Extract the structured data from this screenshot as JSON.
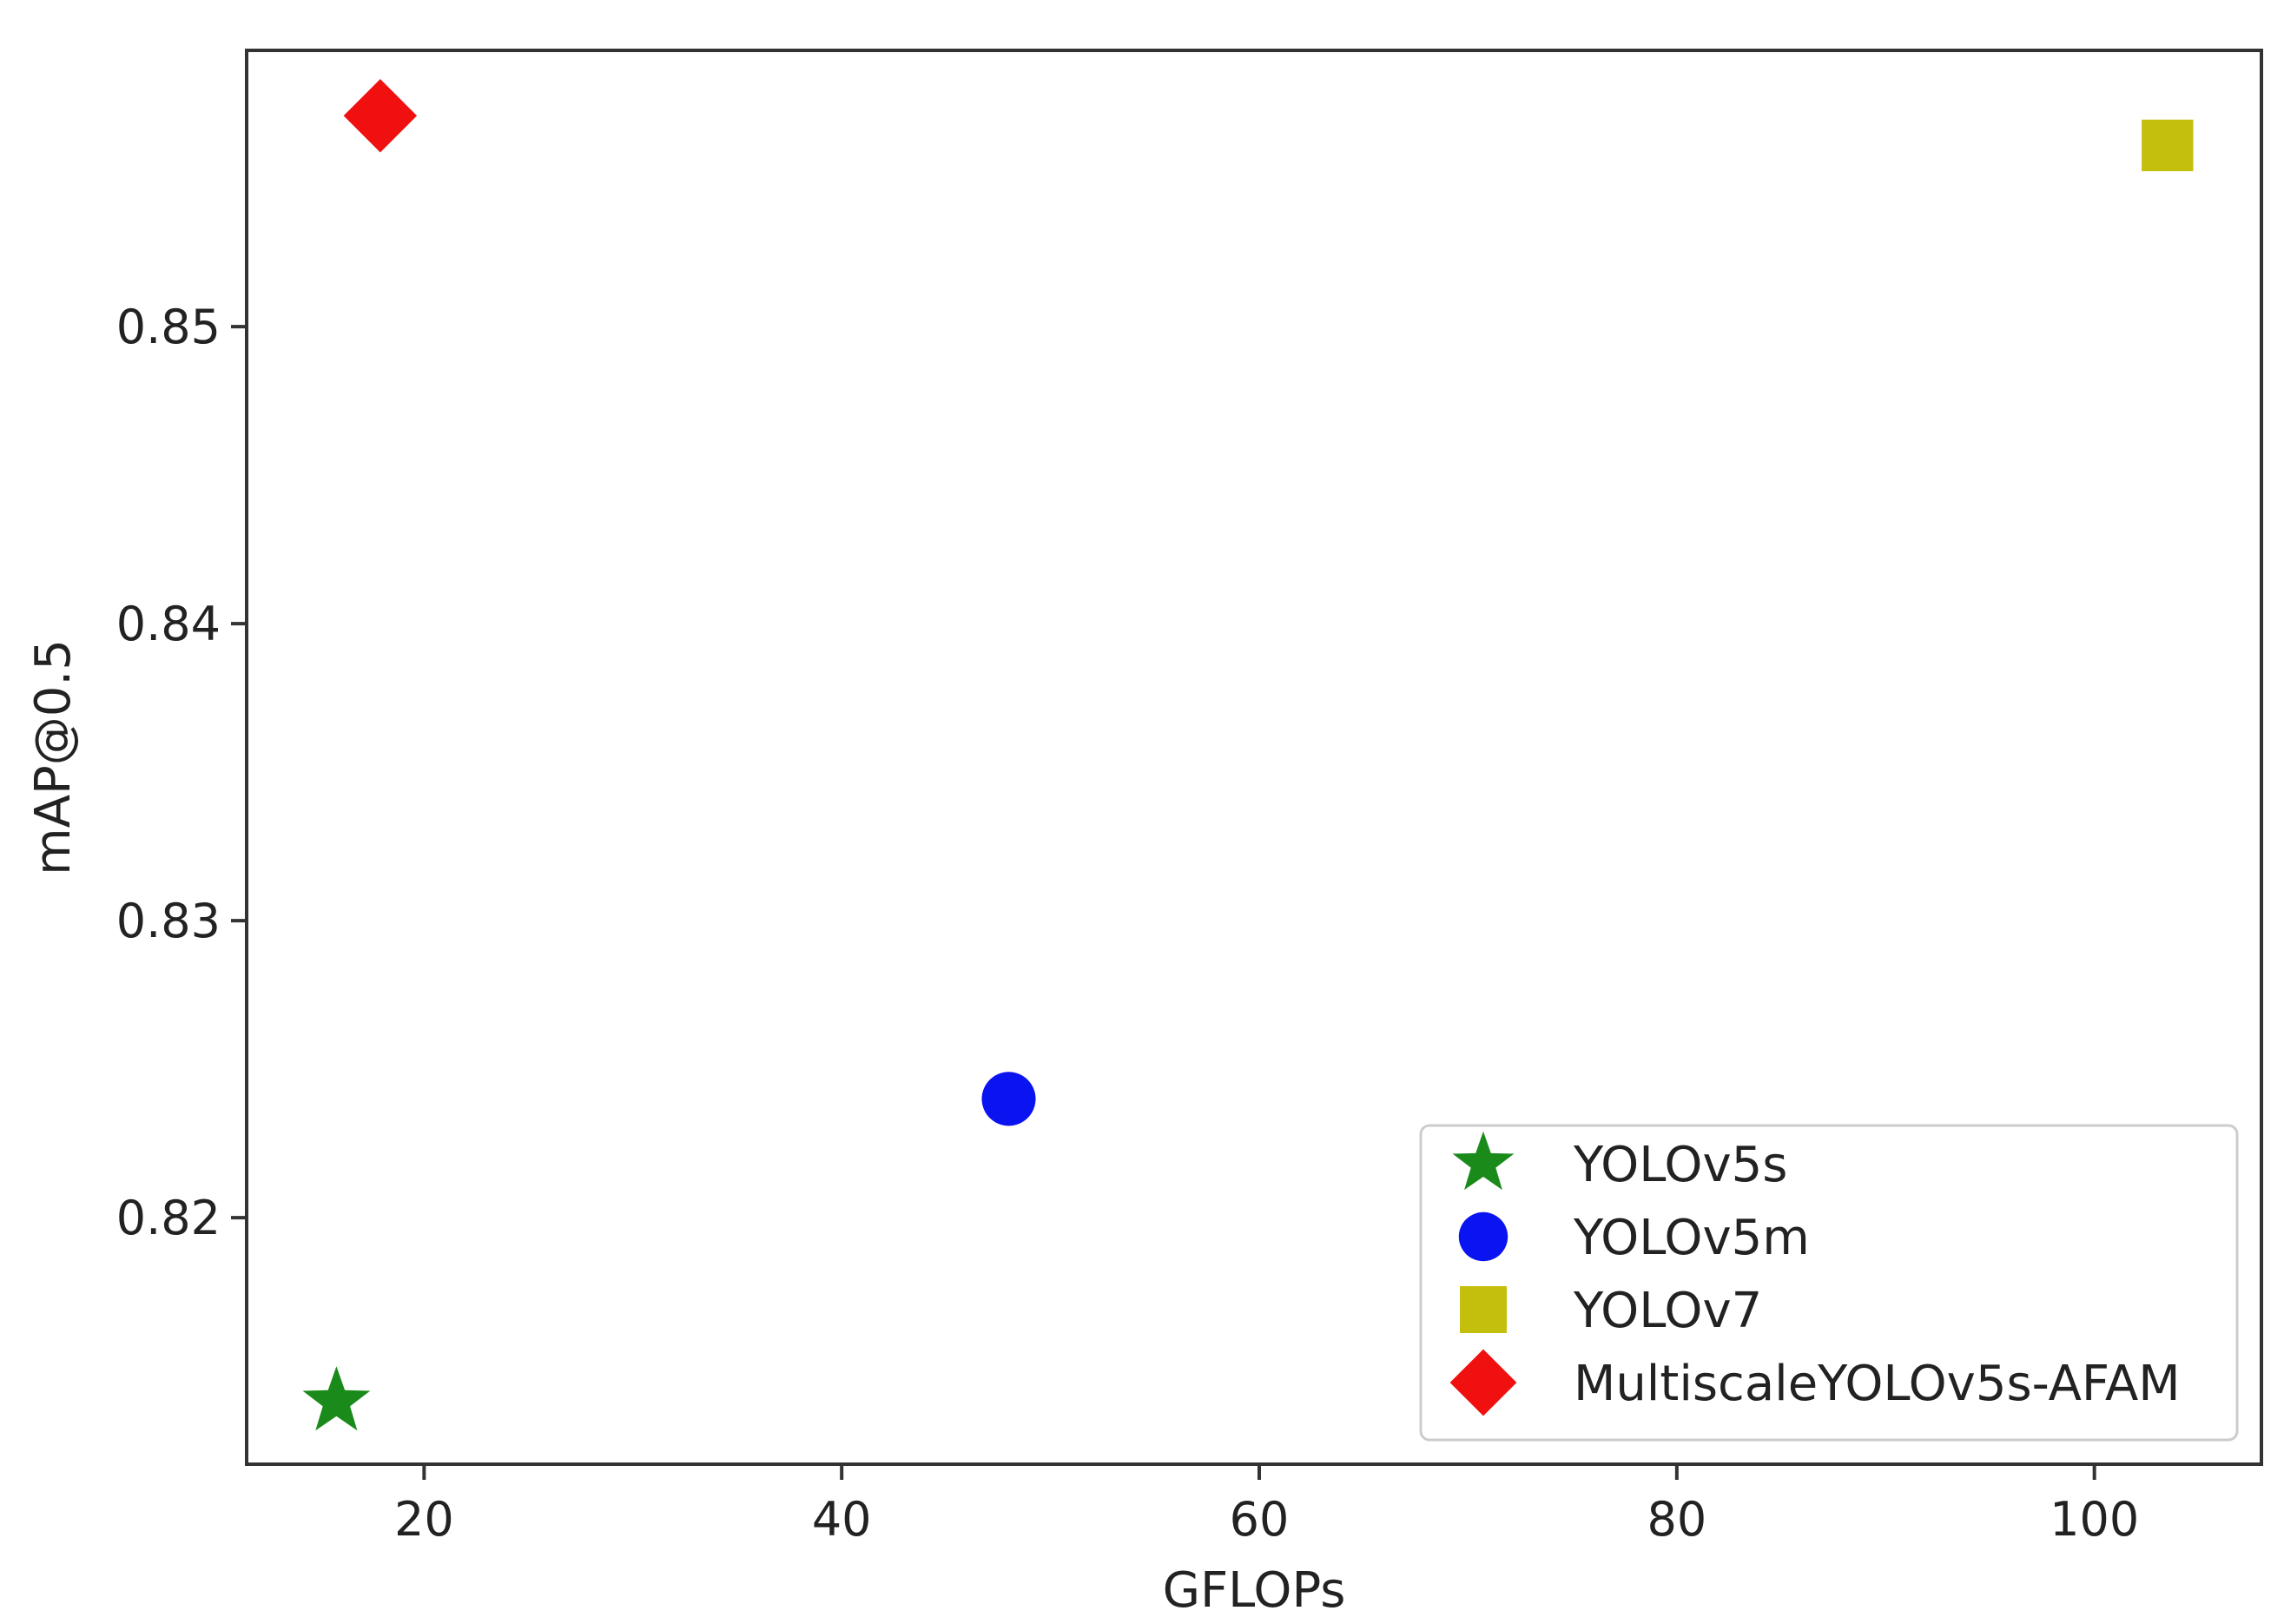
{
  "chart_data": {
    "type": "scatter",
    "title": "",
    "xlabel": "GFLOPs",
    "ylabel": "mAP@0.5",
    "xlim": [
      11.5,
      108
    ],
    "ylim": [
      0.8117,
      0.8593
    ],
    "xticks": [
      20,
      40,
      60,
      80,
      100
    ],
    "yticks": [
      0.82,
      0.83,
      0.84,
      0.85
    ],
    "xtick_labels": [
      "20",
      "40",
      "60",
      "80",
      "100"
    ],
    "ytick_labels": [
      "0.82",
      "0.83",
      "0.84",
      "0.85"
    ],
    "grid": false,
    "legend_position": "lower-right",
    "series": [
      {
        "name": "YOLOv5s",
        "marker": "star",
        "color": "#1a8a1a",
        "x": 15.8,
        "y": 0.8138
      },
      {
        "name": "YOLOv5m",
        "marker": "circle",
        "color": "#0a14f0",
        "x": 48.0,
        "y": 0.824
      },
      {
        "name": "YOLOv7",
        "marker": "square",
        "color": "#c4be0c",
        "x": 103.5,
        "y": 0.8561
      },
      {
        "name": "MultiscaleYOLOv5s-AFAM",
        "marker": "diamond",
        "color": "#f01010",
        "x": 17.9,
        "y": 0.8571
      }
    ]
  }
}
